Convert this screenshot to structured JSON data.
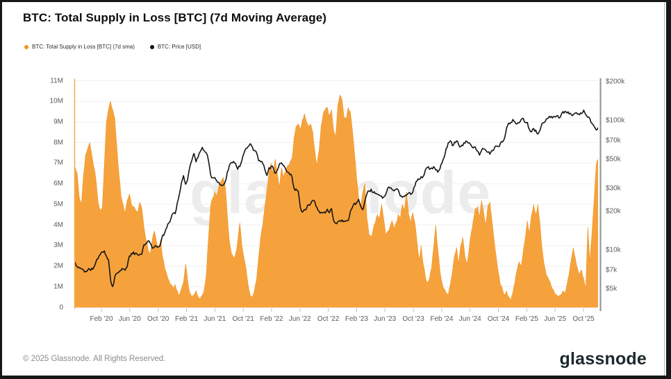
{
  "header": {
    "title": "BTC: Total Supply in Loss [BTC] (7d Moving Average)"
  },
  "legend": {
    "items": [
      {
        "label": "BTC: Total Supply in Loss [BTC] (7d sma)",
        "color": "#F7931A"
      },
      {
        "label": "BTC: Price [USD]",
        "color": "#111111"
      }
    ]
  },
  "watermark": {
    "text": "glassnode"
  },
  "footer": {
    "copyright": "© 2025 Glassnode. All Rights Reserved.",
    "logo_text": "glassnode"
  },
  "chart_data": {
    "type": "area",
    "title": "BTC: Total Supply in Loss [BTC] (7d Moving Average)",
    "grid": true,
    "x_axis": {
      "start_label_implied": "Oct 2019",
      "ticks": [
        {
          "label": "Feb '20",
          "m": 4
        },
        {
          "label": "Jun '20",
          "m": 8
        },
        {
          "label": "Oct '20",
          "m": 12
        },
        {
          "label": "Feb '21",
          "m": 16
        },
        {
          "label": "Jun '21",
          "m": 20
        },
        {
          "label": "Oct '21",
          "m": 24
        },
        {
          "label": "Feb '22",
          "m": 28
        },
        {
          "label": "Jun '22",
          "m": 32
        },
        {
          "label": "Oct '22",
          "m": 36
        },
        {
          "label": "Feb '23",
          "m": 40
        },
        {
          "label": "Jun '23",
          "m": 44
        },
        {
          "label": "Oct '23",
          "m": 48
        },
        {
          "label": "Feb '24",
          "m": 52
        },
        {
          "label": "Jun '24",
          "m": 56
        },
        {
          "label": "Oct '24",
          "m": 60
        },
        {
          "label": "Feb '25",
          "m": 64
        },
        {
          "label": "Jun '25",
          "m": 68
        },
        {
          "label": "Oct '25",
          "m": 72
        }
      ]
    },
    "left_axis": {
      "unit": "BTC",
      "min": 0,
      "max": 11000000,
      "ticks": [
        {
          "label": "11M",
          "v": 11
        },
        {
          "label": "10M",
          "v": 10
        },
        {
          "label": "9M",
          "v": 9
        },
        {
          "label": "8M",
          "v": 8
        },
        {
          "label": "7M",
          "v": 7
        },
        {
          "label": "6M",
          "v": 6
        },
        {
          "label": "5M",
          "v": 5
        },
        {
          "label": "4M",
          "v": 4
        },
        {
          "label": "3M",
          "v": 3
        },
        {
          "label": "2M",
          "v": 2
        },
        {
          "label": "1M",
          "v": 1
        },
        {
          "label": "0",
          "v": 0
        }
      ]
    },
    "right_axis": {
      "unit": "USD",
      "scale": "log",
      "top_value_k": 200,
      "ticks": [
        {
          "label": "$200k",
          "k": 200
        },
        {
          "label": "$100k",
          "k": 100
        },
        {
          "label": "$70k",
          "k": 70
        },
        {
          "label": "$50k",
          "k": 50
        },
        {
          "label": "$30k",
          "k": 30
        },
        {
          "label": "$20k",
          "k": 20
        },
        {
          "label": "$10k",
          "k": 10
        },
        {
          "label": "$7k",
          "k": 7
        },
        {
          "label": "$5k",
          "k": 5
        }
      ]
    },
    "series": [
      {
        "name": "BTC: Total Supply in Loss [BTC] (7d sma)",
        "axis": "left",
        "style": "area",
        "color": "#F6A23C",
        "x_start_months": 0,
        "x_step_months": 0.294,
        "values_million_btc": [
          6.6,
          6.8,
          6.5,
          5.3,
          5.0,
          6.4,
          7.4,
          7.7,
          8.0,
          7.4,
          6.8,
          6.2,
          5.1,
          4.7,
          4.8,
          6.9,
          9.0,
          9.6,
          10.0,
          9.6,
          9.2,
          7.8,
          6.5,
          5.4,
          5.0,
          4.6,
          5.2,
          5.5,
          5.0,
          4.9,
          4.7,
          4.6,
          5.1,
          4.8,
          3.9,
          3.3,
          2.8,
          2.6,
          3.3,
          3.7,
          3.2,
          2.9,
          3.3,
          2.4,
          1.9,
          1.6,
          1.3,
          1.1,
          0.9,
          1.1,
          0.8,
          0.6,
          0.9,
          1.2,
          2.1,
          1.3,
          0.7,
          0.5,
          0.6,
          0.8,
          0.5,
          0.4,
          0.6,
          0.9,
          1.7,
          3.4,
          4.9,
          5.3,
          5.6,
          5.4,
          5.9,
          6.1,
          6.3,
          5.9,
          4.5,
          3.2,
          2.6,
          2.4,
          2.6,
          3.2,
          4.1,
          3.0,
          2.4,
          1.9,
          1.1,
          0.6,
          0.5,
          0.8,
          1.3,
          2.4,
          3.4,
          4.0,
          4.9,
          5.7,
          6.6,
          7.0,
          6.5,
          7.2,
          6.5,
          5.8,
          6.8,
          6.3,
          6.6,
          6.9,
          7.0,
          7.2,
          8.2,
          8.8,
          8.9,
          8.6,
          9.1,
          9.4,
          9.0,
          8.8,
          8.9,
          8.5,
          7.6,
          6.9,
          7.6,
          8.8,
          9.4,
          9.6,
          9.7,
          9.3,
          9.6,
          8.6,
          8.3,
          9.8,
          10.3,
          10.1,
          9.2,
          9.1,
          9.7,
          9.5,
          8.6,
          7.5,
          6.3,
          5.3,
          4.9,
          5.6,
          6.0,
          4.3,
          3.5,
          3.4,
          3.8,
          4.1,
          4.5,
          4.3,
          5.0,
          4.3,
          3.5,
          3.7,
          3.9,
          4.2,
          3.8,
          4.1,
          4.5,
          4.3,
          5.0,
          4.7,
          5.6,
          4.5,
          4.1,
          4.6,
          4.1,
          3.2,
          2.3,
          3.0,
          2.1,
          1.5,
          1.2,
          1.4,
          1.9,
          2.9,
          4.0,
          2.8,
          1.8,
          1.2,
          0.9,
          0.7,
          0.6,
          1.1,
          1.7,
          2.5,
          2.9,
          2.1,
          3.0,
          3.4,
          2.5,
          2.1,
          2.8,
          3.6,
          4.2,
          4.8,
          4.9,
          4.4,
          5.2,
          4.6,
          4.0,
          4.9,
          5.1,
          4.2,
          3.3,
          2.5,
          1.7,
          1.1,
          0.9,
          0.6,
          0.8,
          0.5,
          0.3,
          0.7,
          1.2,
          1.8,
          2.2,
          2.0,
          2.7,
          3.4,
          4.2,
          3.6,
          4.5,
          5.0,
          4.5,
          5.0,
          4.1,
          2.9,
          2.1,
          1.6,
          1.4,
          1.2,
          0.9,
          0.7,
          0.6,
          0.5,
          0.6,
          0.8,
          0.7,
          1.1,
          1.6,
          2.3,
          2.9,
          2.4,
          1.9,
          1.6,
          1.8,
          1.4,
          0.9,
          3.9,
          2.2,
          3.6,
          5.2,
          6.9,
          7.2
        ]
      },
      {
        "name": "BTC: Price [USD]",
        "axis": "right",
        "style": "line",
        "color": "#141414",
        "x_start_months": 0,
        "x_step_months": 0.294,
        "values_usd_thousands": [
          8.4,
          8.0,
          7.5,
          7.3,
          7.2,
          7.0,
          6.8,
          7.0,
          7.1,
          7.2,
          7.4,
          8.1,
          8.6,
          9.2,
          9.6,
          9.9,
          9.1,
          8.5,
          5.8,
          5.2,
          6.2,
          6.6,
          6.8,
          7.0,
          7.1,
          7.0,
          7.5,
          9.0,
          9.4,
          9.6,
          9.4,
          9.2,
          9.2,
          9.3,
          11.0,
          11.3,
          11.7,
          11.3,
          10.3,
          10.5,
          10.7,
          10.6,
          11.2,
          13.0,
          13.6,
          15.0,
          16.3,
          17.8,
          19.2,
          19.0,
          23.0,
          27.0,
          33.0,
          37.5,
          32.5,
          35.5,
          44.0,
          49.0,
          55.5,
          48.5,
          52.5,
          58.0,
          62.5,
          58.5,
          56.0,
          49.0,
          38.5,
          36.0,
          36.5,
          34.5,
          33.5,
          32.0,
          31.5,
          33.5,
          40.0,
          45.5,
          47.5,
          48.5,
          47.0,
          42.5,
          44.5,
          49.5,
          56.5,
          61.0,
          63.5,
          66.0,
          63.0,
          58.0,
          57.0,
          49.5,
          48.5,
          47.0,
          42.0,
          38.0,
          43.0,
          44.5,
          43.5,
          39.0,
          41.5,
          46.5,
          47.0,
          45.5,
          42.0,
          40.0,
          38.5,
          37.0,
          30.0,
          29.5,
          28.5,
          21.5,
          19.5,
          20.5,
          21.0,
          22.5,
          23.0,
          24.0,
          23.5,
          21.5,
          20.0,
          19.5,
          19.3,
          19.2,
          20.5,
          19.5,
          20.8,
          17.0,
          16.2,
          16.5,
          16.8,
          17.2,
          16.8,
          16.7,
          16.8,
          19.8,
          21.5,
          23.0,
          23.2,
          24.5,
          22.0,
          20.5,
          24.0,
          27.5,
          28.5,
          29.5,
          28.0,
          27.5,
          27.0,
          26.5,
          26.0,
          25.5,
          27.0,
          30.5,
          30.0,
          29.5,
          29.0,
          29.5,
          29.0,
          26.0,
          25.8,
          26.0,
          26.5,
          27.5,
          27.0,
          28.0,
          31.5,
          34.5,
          35.0,
          37.0,
          37.5,
          41.5,
          43.5,
          42.5,
          43.0,
          44.0,
          42.0,
          40.0,
          42.5,
          47.5,
          51.5,
          60.5,
          67.5,
          69.5,
          64.5,
          68.5,
          70.0,
          65.5,
          63.0,
          64.5,
          67.5,
          69.0,
          67.0,
          64.0,
          61.5,
          62.5,
          58.0,
          54.0,
          59.0,
          61.0,
          59.5,
          57.0,
          55.5,
          58.5,
          61.0,
          63.5,
          62.5,
          67.0,
          69.0,
          72.5,
          88.0,
          96.5,
          97.0,
          101.5,
          97.5,
          94.5,
          97.0,
          102.5,
          104.5,
          96.5,
          96.0,
          84.5,
          82.5,
          86.5,
          84.0,
          79.5,
          83.5,
          94.5,
          97.0,
          103.5,
          104.0,
          106.5,
          105.5,
          107.5,
          108.5,
          106.0,
          109.5,
          118.0,
          117.5,
          115.0,
          113.0,
          111.0,
          112.5,
          115.5,
          112.0,
          110.5,
          114.0,
          121.0,
          111.0,
          106.0,
          103.0,
          96.0,
          91.0,
          85.5,
          88.0
        ]
      }
    ]
  }
}
